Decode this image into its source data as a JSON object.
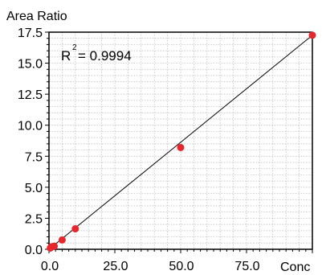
{
  "chart_data": {
    "type": "scatter",
    "ylabel": "Area Ratio",
    "xlabel": "Conc",
    "annotation": {
      "r_symbol": "R",
      "r_exponent": "2",
      "r_value": "= 0.9994"
    },
    "xlim": [
      0,
      100
    ],
    "ylim": [
      0,
      17.5
    ],
    "x_ticks": [
      0,
      25,
      50,
      75
    ],
    "x_tick_labels": [
      "0.0",
      "25.0",
      "50.0",
      "75.0"
    ],
    "y_ticks": [
      0,
      2.5,
      5,
      7.5,
      10,
      12.5,
      15,
      17.5
    ],
    "y_tick_labels": [
      "0.0",
      "2.5",
      "5.0",
      "7.5",
      "10.0",
      "12.5",
      "15.0",
      "17.5"
    ],
    "grid": true,
    "points": [
      {
        "x": 0.5,
        "y": 0.1
      },
      {
        "x": 1.0,
        "y": 0.2
      },
      {
        "x": 2.0,
        "y": 0.25
      },
      {
        "x": 5.0,
        "y": 0.75
      },
      {
        "x": 10.0,
        "y": 1.65
      },
      {
        "x": 50.0,
        "y": 8.2
      },
      {
        "x": 100.0,
        "y": 17.25
      }
    ],
    "fit_line": {
      "x": [
        0,
        100
      ],
      "y": [
        0,
        17.25
      ]
    },
    "point_color": "#e8262d",
    "line_color": "#000000"
  }
}
